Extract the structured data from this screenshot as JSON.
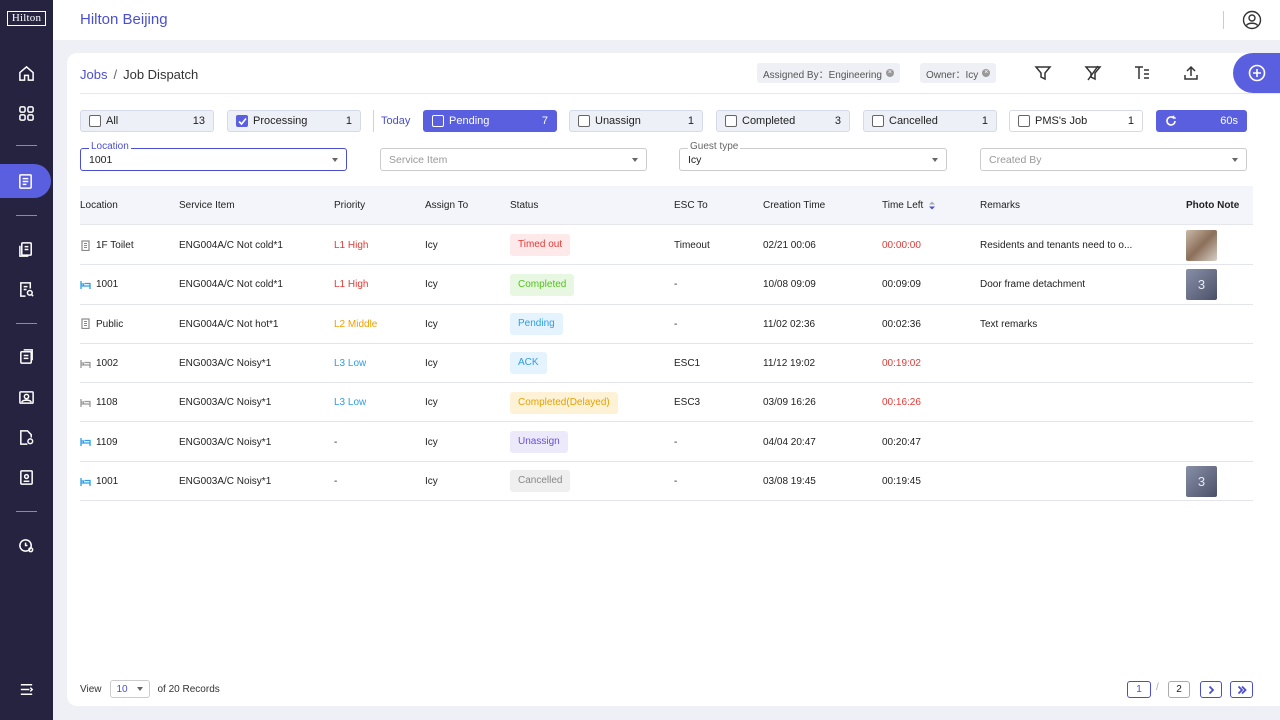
{
  "sidebar": {
    "logo": "Hilton",
    "items": [
      {
        "icon": "home-icon"
      },
      {
        "icon": "grid-icon"
      },
      {
        "icon": "job-dispatch-icon",
        "active": true
      },
      {
        "icon": "document-icon"
      },
      {
        "icon": "report-icon"
      },
      {
        "icon": "clipboard-icon"
      },
      {
        "icon": "image-icon"
      },
      {
        "icon": "file-settings-icon"
      },
      {
        "icon": "badge-icon"
      },
      {
        "icon": "clock-settings-icon"
      },
      {
        "icon": "menu-icon"
      }
    ]
  },
  "topbar": {
    "hotel": "Hilton Beijing"
  },
  "breadcrumb": {
    "root": "Jobs",
    "sep": "/",
    "current": "Job Dispatch"
  },
  "filter_tags": [
    {
      "label": "Assigned By：Engineering"
    },
    {
      "label": "Owner：Icy"
    }
  ],
  "status_filters": {
    "all": {
      "label": "All",
      "count": "13"
    },
    "processing": {
      "label": "Processing",
      "count": "1"
    },
    "today": "Today",
    "pending": {
      "label": "Pending",
      "count": "7"
    },
    "unassign": {
      "label": "Unassign",
      "count": "1"
    },
    "completed": {
      "label": "Completed",
      "count": "3"
    },
    "cancelled": {
      "label": "Cancelled",
      "count": "1"
    },
    "pms": {
      "label": "PMS's Job",
      "count": "1"
    },
    "refresh": "60s"
  },
  "selects": {
    "location": {
      "label": "Location",
      "value": "1001"
    },
    "service_item": {
      "placeholder": "Service Item"
    },
    "guest_type": {
      "label": "Guest type",
      "value": "Icy"
    },
    "created_by": {
      "placeholder": "Created By"
    }
  },
  "table": {
    "headers": [
      "Location",
      "Service Item",
      "Priority",
      "Assign To",
      "Status",
      "ESC To",
      "Creation Time",
      "Time Left",
      "Remarks",
      "Photo Note"
    ],
    "rows": [
      {
        "loc_icon": "building",
        "location": "1F Toilet",
        "service": "ENG004A/C Not cold*1",
        "priority": "L1 High",
        "pcolor": "#e53935",
        "assign": "Icy",
        "status": "Timed out",
        "sbg": "#fde8ea",
        "sfg": "#e53935",
        "esc": "Timeout",
        "created": "02/21  00:06",
        "left": "00:00:00",
        "lcolor": "#e53935",
        "remarks": "Residents and tenants need to o...",
        "photo": "photo"
      },
      {
        "loc_icon": "bed",
        "location": "1001",
        "service": "ENG004A/C Not cold*1",
        "priority": "L1 High",
        "pcolor": "#e53935",
        "assign": "Icy",
        "status": "Completed",
        "sbg": "#e7f7e2",
        "sfg": "#52c41a",
        "esc": "-",
        "created": "10/08  09:09",
        "left": "00:09:09",
        "lcolor": "#222",
        "remarks": "Door frame detachment",
        "photo": "3"
      },
      {
        "loc_icon": "building",
        "location": "Public",
        "service": "ENG004A/C Not hot*1",
        "priority": "L2 Middle",
        "pcolor": "#f0a000",
        "assign": "Icy",
        "status": "Pending",
        "sbg": "#e4f3fd",
        "sfg": "#2d9ee8",
        "esc": "-",
        "created": "11/02   02:36",
        "left": "00:02:36",
        "lcolor": "#222",
        "remarks": "Text remarks",
        "photo": ""
      },
      {
        "loc_icon": "bed-grey",
        "location": "1002",
        "service": "ENG003A/C Noisy*1",
        "priority": "L3 Low",
        "pcolor": "#2d9ee8",
        "assign": "Icy",
        "status": "ACK",
        "sbg": "#e4f3fd",
        "sfg": "#2d9ee8",
        "esc": "ESC1",
        "created": "11/12     19:02",
        "left": "00:19:02",
        "lcolor": "#e53935",
        "remarks": "",
        "photo": ""
      },
      {
        "loc_icon": "bed-grey",
        "location": "1108",
        "service": "ENG003A/C Noisy*1",
        "priority": "L3 Low",
        "pcolor": "#2d9ee8",
        "assign": "Icy",
        "status": "Completed(Delayed)",
        "sbg": "#fdf2d6",
        "sfg": "#e5a100",
        "esc": "ESC3",
        "created": "03/09 16:26",
        "left": "00:16:26",
        "lcolor": "#e53935",
        "remarks": "",
        "photo": ""
      },
      {
        "loc_icon": "bed",
        "location": "1109",
        "service": "ENG003A/C Noisy*1",
        "priority": "-",
        "pcolor": "#222",
        "assign": "Icy",
        "status": "Unassign",
        "sbg": "#ece9fb",
        "sfg": "#6a4fd8",
        "esc": "-",
        "created": "04/04 20:47",
        "left": "00:20:47",
        "lcolor": "#222",
        "remarks": "",
        "photo": ""
      },
      {
        "loc_icon": "bed",
        "location": "1001",
        "service": "ENG003A/C Noisy*1",
        "priority": "-",
        "pcolor": "#222",
        "assign": "Icy",
        "status": "Cancelled",
        "sbg": "#efefef",
        "sfg": "#888",
        "esc": "-",
        "created": "03/08 19:45",
        "left": "00:19:45",
        "lcolor": "#222",
        "remarks": "",
        "photo": "3"
      }
    ]
  },
  "footer": {
    "view_label": "View",
    "page_size": "10",
    "records": "of 20 Records",
    "pages": [
      "1",
      "2"
    ],
    "page_sep": "/"
  }
}
